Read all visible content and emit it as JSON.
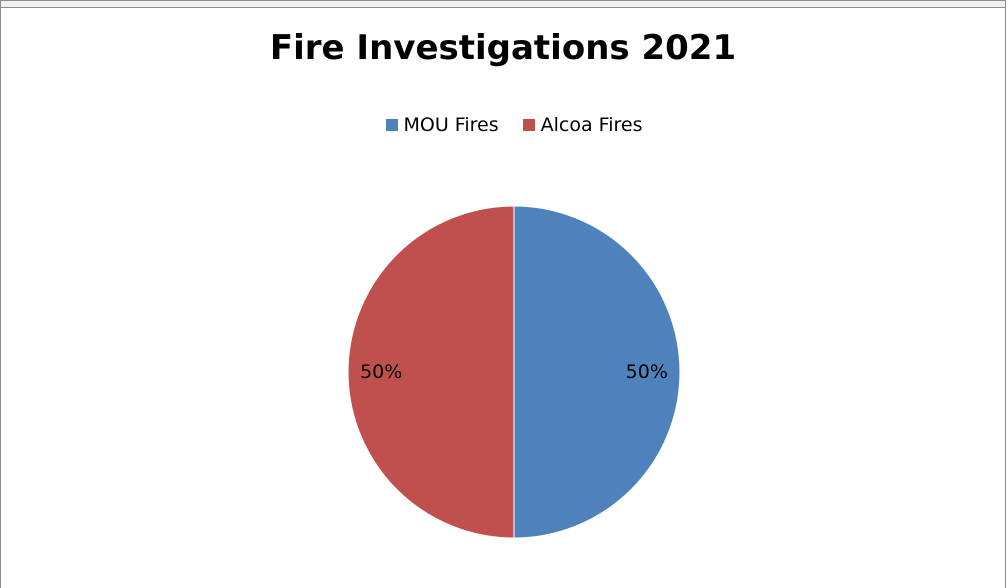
{
  "chart_data": {
    "type": "pie",
    "title": "Fire Investigations 2021",
    "legend_position": "top",
    "slices": [
      {
        "name": "MOU Fires",
        "value": 50,
        "label": "50%",
        "color": "#4f81bd"
      },
      {
        "name": "Alcoa Fires",
        "value": 50,
        "label": "50%",
        "color": "#c0504d"
      }
    ]
  }
}
